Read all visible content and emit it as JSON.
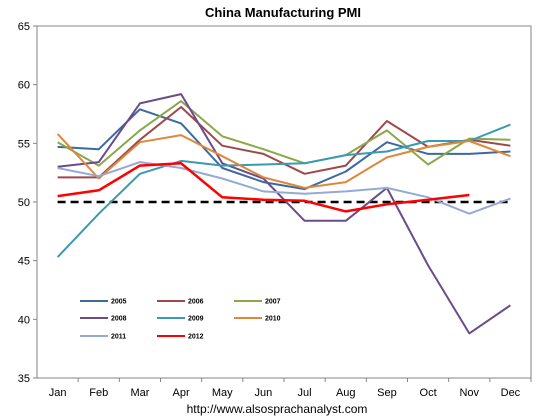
{
  "chart_data": {
    "type": "line",
    "title": "China Manufacturing PMI",
    "footer": "http://www.alsosprachanalyst.com",
    "categories": [
      "Jan",
      "Feb",
      "Mar",
      "Apr",
      "May",
      "Jun",
      "Jul",
      "Aug",
      "Sep",
      "Oct",
      "Nov",
      "Dec"
    ],
    "ylim": [
      35,
      65
    ],
    "yticks": [
      35,
      40,
      45,
      50,
      55,
      60,
      65
    ],
    "reference_line": {
      "value": 50,
      "style": "dashed",
      "color": "#000000"
    },
    "legend_position": "bottom-left",
    "series": [
      {
        "name": "2005",
        "color": "#3b6aa0",
        "values": [
          54.7,
          54.5,
          57.9,
          56.7,
          52.9,
          51.7,
          51.1,
          52.6,
          55.1,
          54.1,
          54.1,
          54.3
        ]
      },
      {
        "name": "2006",
        "color": "#a0474a",
        "values": [
          52.1,
          52.1,
          55.3,
          58.1,
          54.8,
          54.1,
          52.4,
          53.1,
          56.9,
          54.7,
          55.3,
          54.8
        ]
      },
      {
        "name": "2007",
        "color": "#8aa84a",
        "values": [
          55.1,
          53.1,
          56.1,
          58.6,
          55.6,
          54.5,
          53.3,
          54.0,
          56.1,
          53.2,
          55.4,
          55.3
        ]
      },
      {
        "name": "2008",
        "color": "#6b4c8a",
        "values": [
          53.0,
          53.4,
          58.4,
          59.2,
          53.3,
          52.0,
          48.4,
          48.4,
          51.2,
          44.6,
          38.8,
          41.2
        ]
      },
      {
        "name": "2009",
        "color": "#3a9ab0",
        "values": [
          45.3,
          49.0,
          52.4,
          53.5,
          53.1,
          53.2,
          53.3,
          54.0,
          54.3,
          55.2,
          55.2,
          56.6
        ]
      },
      {
        "name": "2010",
        "color": "#e0873a",
        "values": [
          55.8,
          52.0,
          55.1,
          55.7,
          53.9,
          52.1,
          51.2,
          51.7,
          53.8,
          54.7,
          55.2,
          53.9
        ]
      },
      {
        "name": "2011",
        "color": "#93aad4",
        "values": [
          52.9,
          52.2,
          53.4,
          52.9,
          52.0,
          50.9,
          50.7,
          50.9,
          51.2,
          50.4,
          49.0,
          50.3
        ]
      },
      {
        "name": "2012",
        "color": "#ff0000",
        "values": [
          50.5,
          51.0,
          53.1,
          53.3,
          50.4,
          50.2,
          50.1,
          49.2,
          49.8,
          50.2,
          50.6,
          null
        ]
      }
    ]
  }
}
